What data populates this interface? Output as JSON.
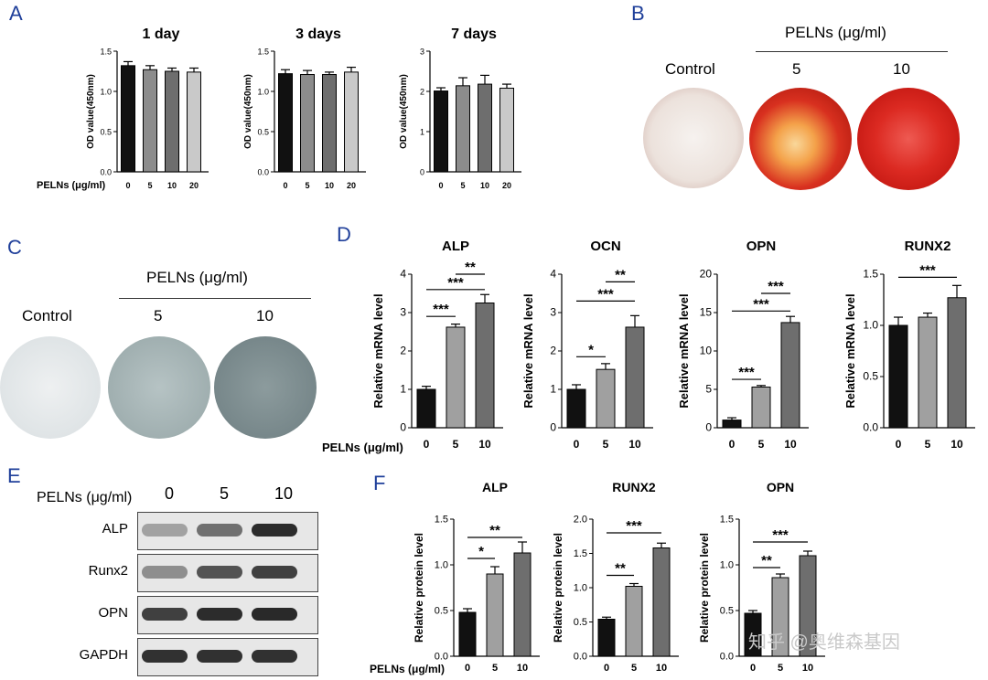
{
  "panels": {
    "A": {
      "letter": "A",
      "x_group_label": "PELNs (μg/ml)",
      "charts": [
        {
          "title": "1 day",
          "ylabel": "OD value(450nm)",
          "ylim": [
            0,
            1.5
          ],
          "yticks": [
            "0.0",
            "0.5",
            "1.0",
            "1.5"
          ],
          "categories": [
            "0",
            "5",
            "10",
            "20"
          ],
          "values": [
            1.32,
            1.27,
            1.25,
            1.24
          ],
          "errors": [
            0.05,
            0.05,
            0.04,
            0.05
          ],
          "fills": [
            "#111111",
            "#8c8c8c",
            "#6e6e6e",
            "#c9c9c9"
          ]
        },
        {
          "title": "3 days",
          "ylabel": "OD value(450nm)",
          "ylim": [
            0,
            1.5
          ],
          "yticks": [
            "0.0",
            "0.5",
            "1.0",
            "1.5"
          ],
          "categories": [
            "0",
            "5",
            "10",
            "20"
          ],
          "values": [
            1.22,
            1.21,
            1.21,
            1.24
          ],
          "errors": [
            0.05,
            0.05,
            0.03,
            0.06
          ],
          "fills": [
            "#111111",
            "#8c8c8c",
            "#6e6e6e",
            "#c9c9c9"
          ]
        },
        {
          "title": "7 days",
          "ylabel": "OD value(450nm)",
          "ylim": [
            0,
            3
          ],
          "yticks": [
            "0",
            "1",
            "2",
            "3"
          ],
          "categories": [
            "0",
            "5",
            "10",
            "20"
          ],
          "values": [
            2.01,
            2.14,
            2.18,
            2.08
          ],
          "errors": [
            0.08,
            0.2,
            0.22,
            0.1
          ],
          "fills": [
            "#111111",
            "#8c8c8c",
            "#6e6e6e",
            "#c9c9c9"
          ]
        }
      ]
    },
    "B": {
      "letter": "B",
      "header": "PELNs (μg/ml)",
      "labels": [
        "Control",
        "5",
        "10"
      ]
    },
    "C": {
      "letter": "C",
      "header": "PELNs (μg/ml)",
      "labels": [
        "Control",
        "5",
        "10"
      ]
    },
    "D": {
      "letter": "D",
      "x_group_label": "PELNs (μg/ml)",
      "charts": [
        {
          "title": "ALP",
          "ylabel": "Relative mRNA level",
          "ylim": [
            0,
            4
          ],
          "yticks": [
            "0",
            "1",
            "2",
            "3",
            "4"
          ],
          "categories": [
            "0",
            "5",
            "10"
          ],
          "values": [
            1.0,
            2.62,
            3.25
          ],
          "errors": [
            0.08,
            0.08,
            0.22
          ],
          "fills": [
            "#111111",
            "#a0a0a0",
            "#6e6e6e"
          ],
          "sig": [
            {
              "from": 0,
              "to": 1,
              "y": 2.9,
              "label": "***"
            },
            {
              "from": 0,
              "to": 2,
              "y": 3.6,
              "label": "***"
            },
            {
              "from": 1,
              "to": 2,
              "y": 4.0,
              "label": "**"
            }
          ]
        },
        {
          "title": "OCN",
          "ylabel": "Relative mRNA level",
          "ylim": [
            0,
            4
          ],
          "yticks": [
            "0",
            "1",
            "2",
            "3",
            "4"
          ],
          "categories": [
            "0",
            "5",
            "10"
          ],
          "values": [
            1.0,
            1.52,
            2.62
          ],
          "errors": [
            0.12,
            0.15,
            0.3
          ],
          "fills": [
            "#111111",
            "#a0a0a0",
            "#6e6e6e"
          ],
          "sig": [
            {
              "from": 0,
              "to": 1,
              "y": 1.85,
              "label": "*"
            },
            {
              "from": 0,
              "to": 2,
              "y": 3.3,
              "label": "***"
            },
            {
              "from": 1,
              "to": 2,
              "y": 3.8,
              "label": "**"
            }
          ]
        },
        {
          "title": "OPN",
          "ylabel": "Relative mRNA level",
          "ylim": [
            0,
            20
          ],
          "yticks": [
            "0",
            "5",
            "10",
            "15",
            "20"
          ],
          "categories": [
            "0",
            "5",
            "10"
          ],
          "values": [
            1.0,
            5.3,
            13.7
          ],
          "errors": [
            0.3,
            0.2,
            0.8
          ],
          "fills": [
            "#111111",
            "#a0a0a0",
            "#6e6e6e"
          ],
          "sig": [
            {
              "from": 0,
              "to": 1,
              "y": 6.3,
              "label": "***"
            },
            {
              "from": 0,
              "to": 2,
              "y": 15.2,
              "label": "***"
            },
            {
              "from": 1,
              "to": 2,
              "y": 17.5,
              "label": "***"
            }
          ]
        },
        {
          "title": "RUNX2",
          "ylabel": "Relative mRNA level",
          "ylim": [
            0,
            1.5
          ],
          "yticks": [
            "0.0",
            "0.5",
            "1.0",
            "1.5"
          ],
          "categories": [
            "0",
            "5",
            "10"
          ],
          "values": [
            1.0,
            1.08,
            1.27
          ],
          "errors": [
            0.08,
            0.04,
            0.12
          ],
          "fills": [
            "#111111",
            "#a0a0a0",
            "#6e6e6e"
          ],
          "sig": [
            {
              "from": 0,
              "to": 2,
              "y": 1.47,
              "label": "***"
            }
          ]
        }
      ]
    },
    "E": {
      "letter": "E",
      "header_label": "PELNs (μg/ml)",
      "lanes": [
        "0",
        "5",
        "10"
      ],
      "rows": [
        {
          "name": "ALP",
          "intensity": [
            0.35,
            0.6,
            0.95
          ]
        },
        {
          "name": "Runx2",
          "intensity": [
            0.45,
            0.75,
            0.85
          ]
        },
        {
          "name": "OPN",
          "intensity": [
            0.85,
            0.95,
            0.97
          ]
        },
        {
          "name": "GAPDH",
          "intensity": [
            0.92,
            0.92,
            0.92
          ]
        }
      ]
    },
    "F": {
      "letter": "F",
      "x_group_label": "PELNs (μg/ml)",
      "charts": [
        {
          "title": "ALP",
          "ylabel": "Relative protein level",
          "ylim": [
            0,
            1.5
          ],
          "yticks": [
            "0.0",
            "0.5",
            "1.0",
            "1.5"
          ],
          "categories": [
            "0",
            "5",
            "10"
          ],
          "values": [
            0.48,
            0.9,
            1.13
          ],
          "errors": [
            0.04,
            0.08,
            0.12
          ],
          "fills": [
            "#111111",
            "#a0a0a0",
            "#6e6e6e"
          ],
          "sig": [
            {
              "from": 0,
              "to": 1,
              "y": 1.07,
              "label": "*"
            },
            {
              "from": 0,
              "to": 2,
              "y": 1.3,
              "label": "**"
            }
          ]
        },
        {
          "title": "RUNX2",
          "ylabel": "Relative protein level",
          "ylim": [
            0,
            2
          ],
          "yticks": [
            "0.0",
            "0.5",
            "1.0",
            "1.5",
            "2.0"
          ],
          "categories": [
            "0",
            "5",
            "10"
          ],
          "values": [
            0.54,
            1.02,
            1.58
          ],
          "errors": [
            0.03,
            0.04,
            0.07
          ],
          "fills": [
            "#111111",
            "#a0a0a0",
            "#6e6e6e"
          ],
          "sig": [
            {
              "from": 0,
              "to": 1,
              "y": 1.18,
              "label": "**"
            },
            {
              "from": 0,
              "to": 2,
              "y": 1.8,
              "label": "***"
            }
          ]
        },
        {
          "title": "OPN",
          "ylabel": "Relative protein level",
          "ylim": [
            0,
            1.5
          ],
          "yticks": [
            "0.0",
            "0.5",
            "1.0",
            "1.5"
          ],
          "categories": [
            "0",
            "5",
            "10"
          ],
          "values": [
            0.47,
            0.86,
            1.1
          ],
          "errors": [
            0.03,
            0.04,
            0.05
          ],
          "fills": [
            "#111111",
            "#a0a0a0",
            "#6e6e6e"
          ],
          "sig": [
            {
              "from": 0,
              "to": 1,
              "y": 0.97,
              "label": "**"
            },
            {
              "from": 0,
              "to": 2,
              "y": 1.25,
              "label": "***"
            }
          ]
        }
      ]
    }
  },
  "watermark": "知乎 @奥维森基因",
  "chart_data": [
    {
      "type": "bar",
      "title": "1 day",
      "ylabel": "OD value(450nm)",
      "xlabel": "PELNs (μg/ml)",
      "categories": [
        "0",
        "5",
        "10",
        "20"
      ],
      "values": [
        1.32,
        1.27,
        1.25,
        1.24
      ],
      "ylim": [
        0,
        1.5
      ]
    },
    {
      "type": "bar",
      "title": "3 days",
      "ylabel": "OD value(450nm)",
      "xlabel": "PELNs (μg/ml)",
      "categories": [
        "0",
        "5",
        "10",
        "20"
      ],
      "values": [
        1.22,
        1.21,
        1.21,
        1.24
      ],
      "ylim": [
        0,
        1.5
      ]
    },
    {
      "type": "bar",
      "title": "7 days",
      "ylabel": "OD value(450nm)",
      "xlabel": "PELNs (μg/ml)",
      "categories": [
        "0",
        "5",
        "10",
        "20"
      ],
      "values": [
        2.01,
        2.14,
        2.18,
        2.08
      ],
      "ylim": [
        0,
        3
      ]
    },
    {
      "type": "bar",
      "title": "ALP",
      "ylabel": "Relative mRNA level",
      "xlabel": "PELNs (μg/ml)",
      "categories": [
        "0",
        "5",
        "10"
      ],
      "values": [
        1.0,
        2.62,
        3.25
      ],
      "ylim": [
        0,
        4
      ]
    },
    {
      "type": "bar",
      "title": "OCN",
      "ylabel": "Relative mRNA level",
      "xlabel": "PELNs (μg/ml)",
      "categories": [
        "0",
        "5",
        "10"
      ],
      "values": [
        1.0,
        1.52,
        2.62
      ],
      "ylim": [
        0,
        4
      ]
    },
    {
      "type": "bar",
      "title": "OPN",
      "ylabel": "Relative mRNA level",
      "xlabel": "PELNs (μg/ml)",
      "categories": [
        "0",
        "5",
        "10"
      ],
      "values": [
        1.0,
        5.3,
        13.7
      ],
      "ylim": [
        0,
        20
      ]
    },
    {
      "type": "bar",
      "title": "RUNX2",
      "ylabel": "Relative mRNA level",
      "xlabel": "PELNs (μg/ml)",
      "categories": [
        "0",
        "5",
        "10"
      ],
      "values": [
        1.0,
        1.08,
        1.27
      ],
      "ylim": [
        0,
        1.5
      ]
    },
    {
      "type": "bar",
      "title": "ALP",
      "ylabel": "Relative protein level",
      "xlabel": "PELNs (μg/ml)",
      "categories": [
        "0",
        "5",
        "10"
      ],
      "values": [
        0.48,
        0.9,
        1.13
      ],
      "ylim": [
        0,
        1.5
      ]
    },
    {
      "type": "bar",
      "title": "RUNX2",
      "ylabel": "Relative protein level",
      "xlabel": "PELNs (μg/ml)",
      "categories": [
        "0",
        "5",
        "10"
      ],
      "values": [
        0.54,
        1.02,
        1.58
      ],
      "ylim": [
        0,
        2
      ]
    },
    {
      "type": "bar",
      "title": "OPN",
      "ylabel": "Relative protein level",
      "xlabel": "PELNs (μg/ml)",
      "categories": [
        "0",
        "5",
        "10"
      ],
      "values": [
        0.47,
        0.86,
        1.1
      ],
      "ylim": [
        0,
        1.5
      ]
    }
  ]
}
